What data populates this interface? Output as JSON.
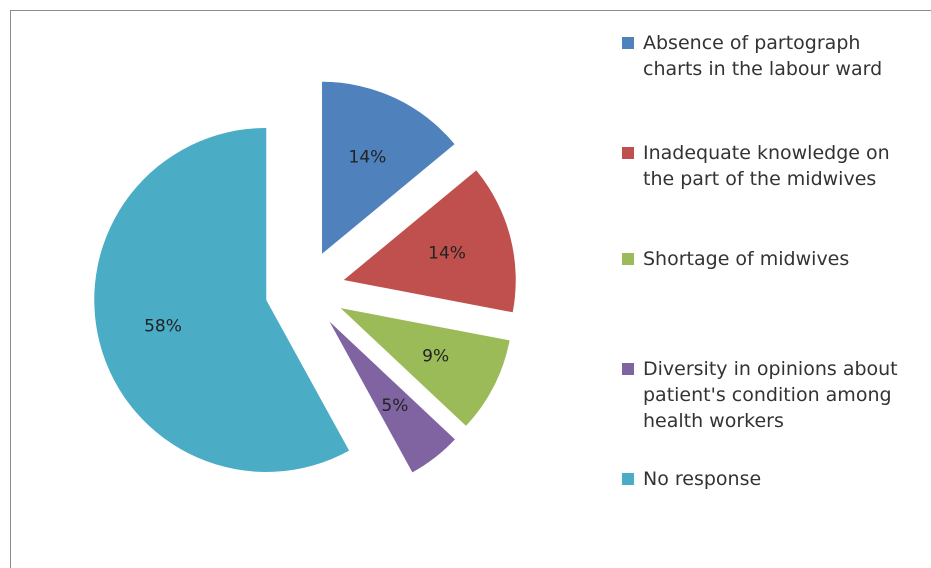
{
  "chart_data": {
    "type": "pie",
    "categories": [
      "Absence of partograph charts in the labour ward",
      "Inadequate knowledge on the part of the midwives",
      "Shortage of midwives",
      "Diversity in opinions about patient's condition among health workers",
      "No response"
    ],
    "values": [
      14,
      14,
      9,
      5,
      58
    ],
    "value_labels": [
      "14%",
      "14%",
      "9%",
      "5%",
      "58%"
    ],
    "colors": [
      "#4f81bd",
      "#c0504d",
      "#9bbb59",
      "#8064a2",
      "#4bacc6"
    ],
    "legend": "right"
  }
}
